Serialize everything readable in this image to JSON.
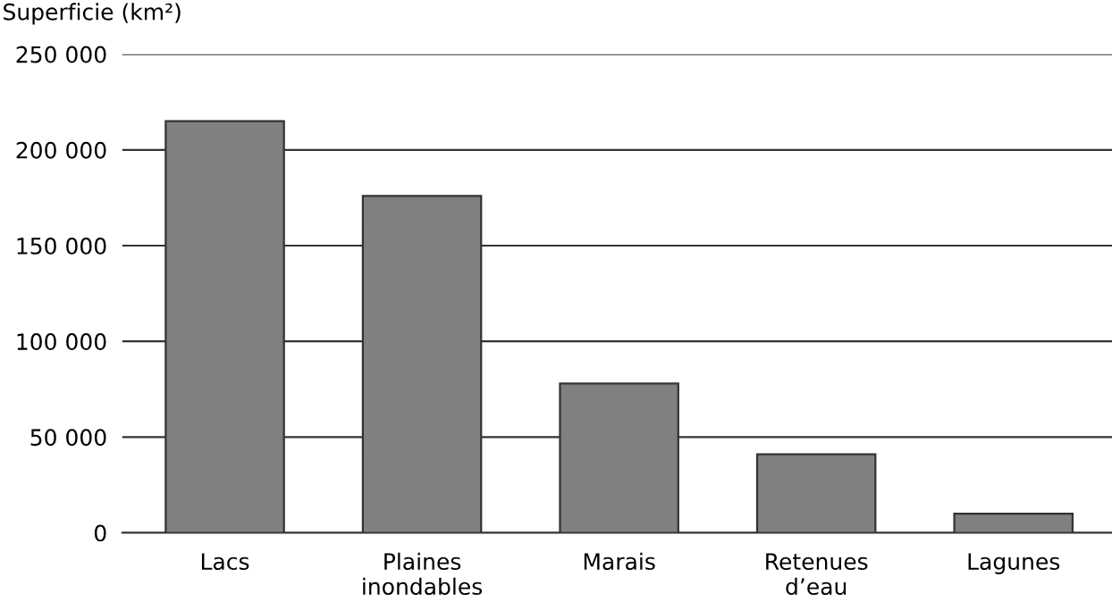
{
  "chart_data": {
    "type": "bar",
    "ylabel": "Superficie (km²)",
    "categories": [
      "Lacs",
      "Plaines\ninondables",
      "Marais",
      "Retenues\nd’eau",
      "Lagunes"
    ],
    "values": [
      215000,
      176000,
      78000,
      41000,
      10000
    ],
    "color": "#808080",
    "ylim": [
      0,
      250000
    ],
    "yticks": [
      {
        "value": 0,
        "label": "0"
      },
      {
        "value": 50000,
        "label": "50 000"
      },
      {
        "value": 100000,
        "label": "100 000"
      },
      {
        "value": 150000,
        "label": "150 000"
      },
      {
        "value": 200000,
        "label": "200 000"
      },
      {
        "value": 250000,
        "label": "250 000"
      }
    ],
    "grid": "y"
  }
}
